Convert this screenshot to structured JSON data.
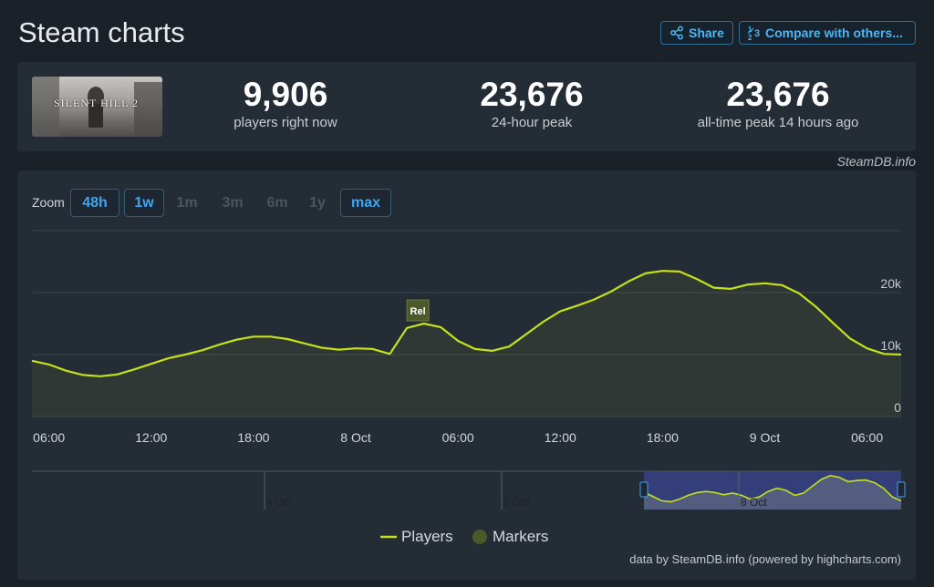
{
  "header": {
    "title": "Steam charts",
    "share_label": "Share",
    "compare_label": "Compare with others..."
  },
  "stats": {
    "game_logo_text": "SILENT HILL 2",
    "current": {
      "value": "9,906",
      "label": "players right now"
    },
    "peak24": {
      "value": "23,676",
      "label": "24-hour peak"
    },
    "alltime": {
      "value": "23,676",
      "label": "all-time peak 14 hours ago"
    }
  },
  "credit": "SteamDB.info",
  "zoom": {
    "label": "Zoom",
    "buttons": [
      {
        "label": "48h",
        "state": "on"
      },
      {
        "label": "1w",
        "state": "on"
      },
      {
        "label": "1m",
        "state": "off"
      },
      {
        "label": "3m",
        "state": "off"
      },
      {
        "label": "6m",
        "state": "off"
      },
      {
        "label": "1y",
        "state": "off"
      },
      {
        "label": "max",
        "state": "on"
      }
    ]
  },
  "legend": {
    "players": "Players",
    "markers": "Markers"
  },
  "footer": "data by SteamDB.info (powered by highcharts.com)",
  "colors": {
    "line": "#c6e11a",
    "marker": "#4c5a2a",
    "accent": "#3ea6f1",
    "navigator_mask": "#3a4590"
  },
  "chart_data": {
    "type": "line",
    "series": [
      {
        "name": "Players"
      }
    ],
    "x": [
      "7 Oct 05:00",
      "7 Oct 06:00",
      "7 Oct 07:00",
      "7 Oct 08:00",
      "7 Oct 09:00",
      "7 Oct 10:00",
      "7 Oct 11:00",
      "7 Oct 12:00",
      "7 Oct 13:00",
      "7 Oct 14:00",
      "7 Oct 15:00",
      "7 Oct 16:00",
      "7 Oct 17:00",
      "7 Oct 18:00",
      "7 Oct 19:00",
      "7 Oct 20:00",
      "7 Oct 21:00",
      "7 Oct 22:00",
      "7 Oct 23:00",
      "8 Oct 00:00",
      "8 Oct 01:00",
      "8 Oct 02:00",
      "8 Oct 03:00",
      "8 Oct 04:00",
      "8 Oct 05:00",
      "8 Oct 06:00",
      "8 Oct 07:00",
      "8 Oct 08:00",
      "8 Oct 09:00",
      "8 Oct 10:00",
      "8 Oct 11:00",
      "8 Oct 12:00",
      "8 Oct 13:00",
      "8 Oct 14:00",
      "8 Oct 15:00",
      "8 Oct 16:00",
      "8 Oct 17:00",
      "8 Oct 18:00",
      "8 Oct 19:00",
      "8 Oct 20:00",
      "8 Oct 21:00",
      "8 Oct 22:00",
      "8 Oct 23:00",
      "9 Oct 00:00",
      "9 Oct 01:00",
      "9 Oct 02:00",
      "9 Oct 03:00",
      "9 Oct 04:00",
      "9 Oct 05:00",
      "9 Oct 06:00",
      "9 Oct 07:00",
      "9 Oct 08:00"
    ],
    "y": [
      9000,
      8400,
      7400,
      6700,
      6500,
      6800,
      7600,
      8500,
      9400,
      10000,
      10700,
      11600,
      12400,
      12900,
      12900,
      12500,
      11800,
      11100,
      10800,
      11000,
      10900,
      10100,
      14300,
      15000,
      14400,
      12200,
      10900,
      10600,
      11300,
      13300,
      15300,
      17000,
      17900,
      18900,
      20200,
      21800,
      23100,
      23500,
      23400,
      22200,
      20800,
      20600,
      21300,
      21500,
      21200,
      19900,
      17700,
      15100,
      12600,
      11000,
      10100,
      10000
    ],
    "x_ticks": [
      "06:00",
      "12:00",
      "18:00",
      "8 Oct",
      "06:00",
      "12:00",
      "18:00",
      "9 Oct",
      "06:00"
    ],
    "y_ticks": [
      "0",
      "10k",
      "20k"
    ],
    "ylim": [
      0,
      30000
    ],
    "markers": [
      {
        "label": "Rel",
        "x": "8 Oct 03:00"
      }
    ],
    "navigator": {
      "labels": [
        "4 Oct",
        "6 Oct",
        "8 Oct"
      ],
      "y": [
        3200,
        2400,
        1600,
        1400,
        1900,
        2600,
        3100,
        3300,
        3100,
        2700,
        3000,
        2600,
        1900,
        2300,
        3300,
        3900,
        3500,
        2600,
        3000,
        4300,
        5500,
        6200,
        5900,
        5100,
        5300,
        5400,
        4900,
        3900,
        2300,
        1600
      ]
    },
    "legend_position": "bottom-center",
    "grid": true
  }
}
